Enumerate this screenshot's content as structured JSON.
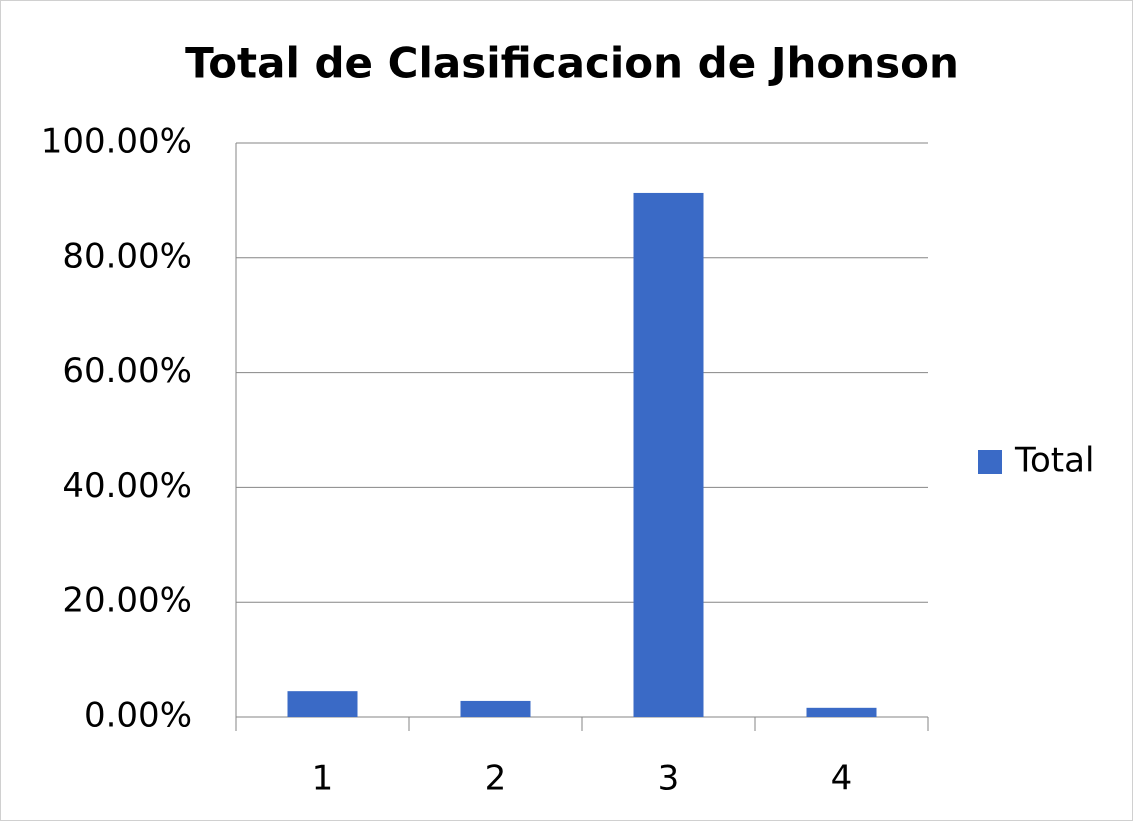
{
  "chart_data": {
    "type": "bar",
    "title": "Total de Clasificacion de Jhonson",
    "categories": [
      "1",
      "2",
      "3",
      "4"
    ],
    "series": [
      {
        "name": "Total",
        "color": "#3a6ac6",
        "values": [
          4.5,
          2.8,
          91.3,
          1.6
        ]
      }
    ],
    "ylim": [
      0,
      100
    ],
    "yticks": [
      {
        "value": 0,
        "label": "0.00%"
      },
      {
        "value": 20,
        "label": "20.00%"
      },
      {
        "value": 40,
        "label": "40.00%"
      },
      {
        "value": 60,
        "label": "60.00%"
      },
      {
        "value": 80,
        "label": "80.00%"
      },
      {
        "value": 100,
        "label": "100.00%"
      }
    ],
    "grid": true,
    "legend": "right"
  }
}
